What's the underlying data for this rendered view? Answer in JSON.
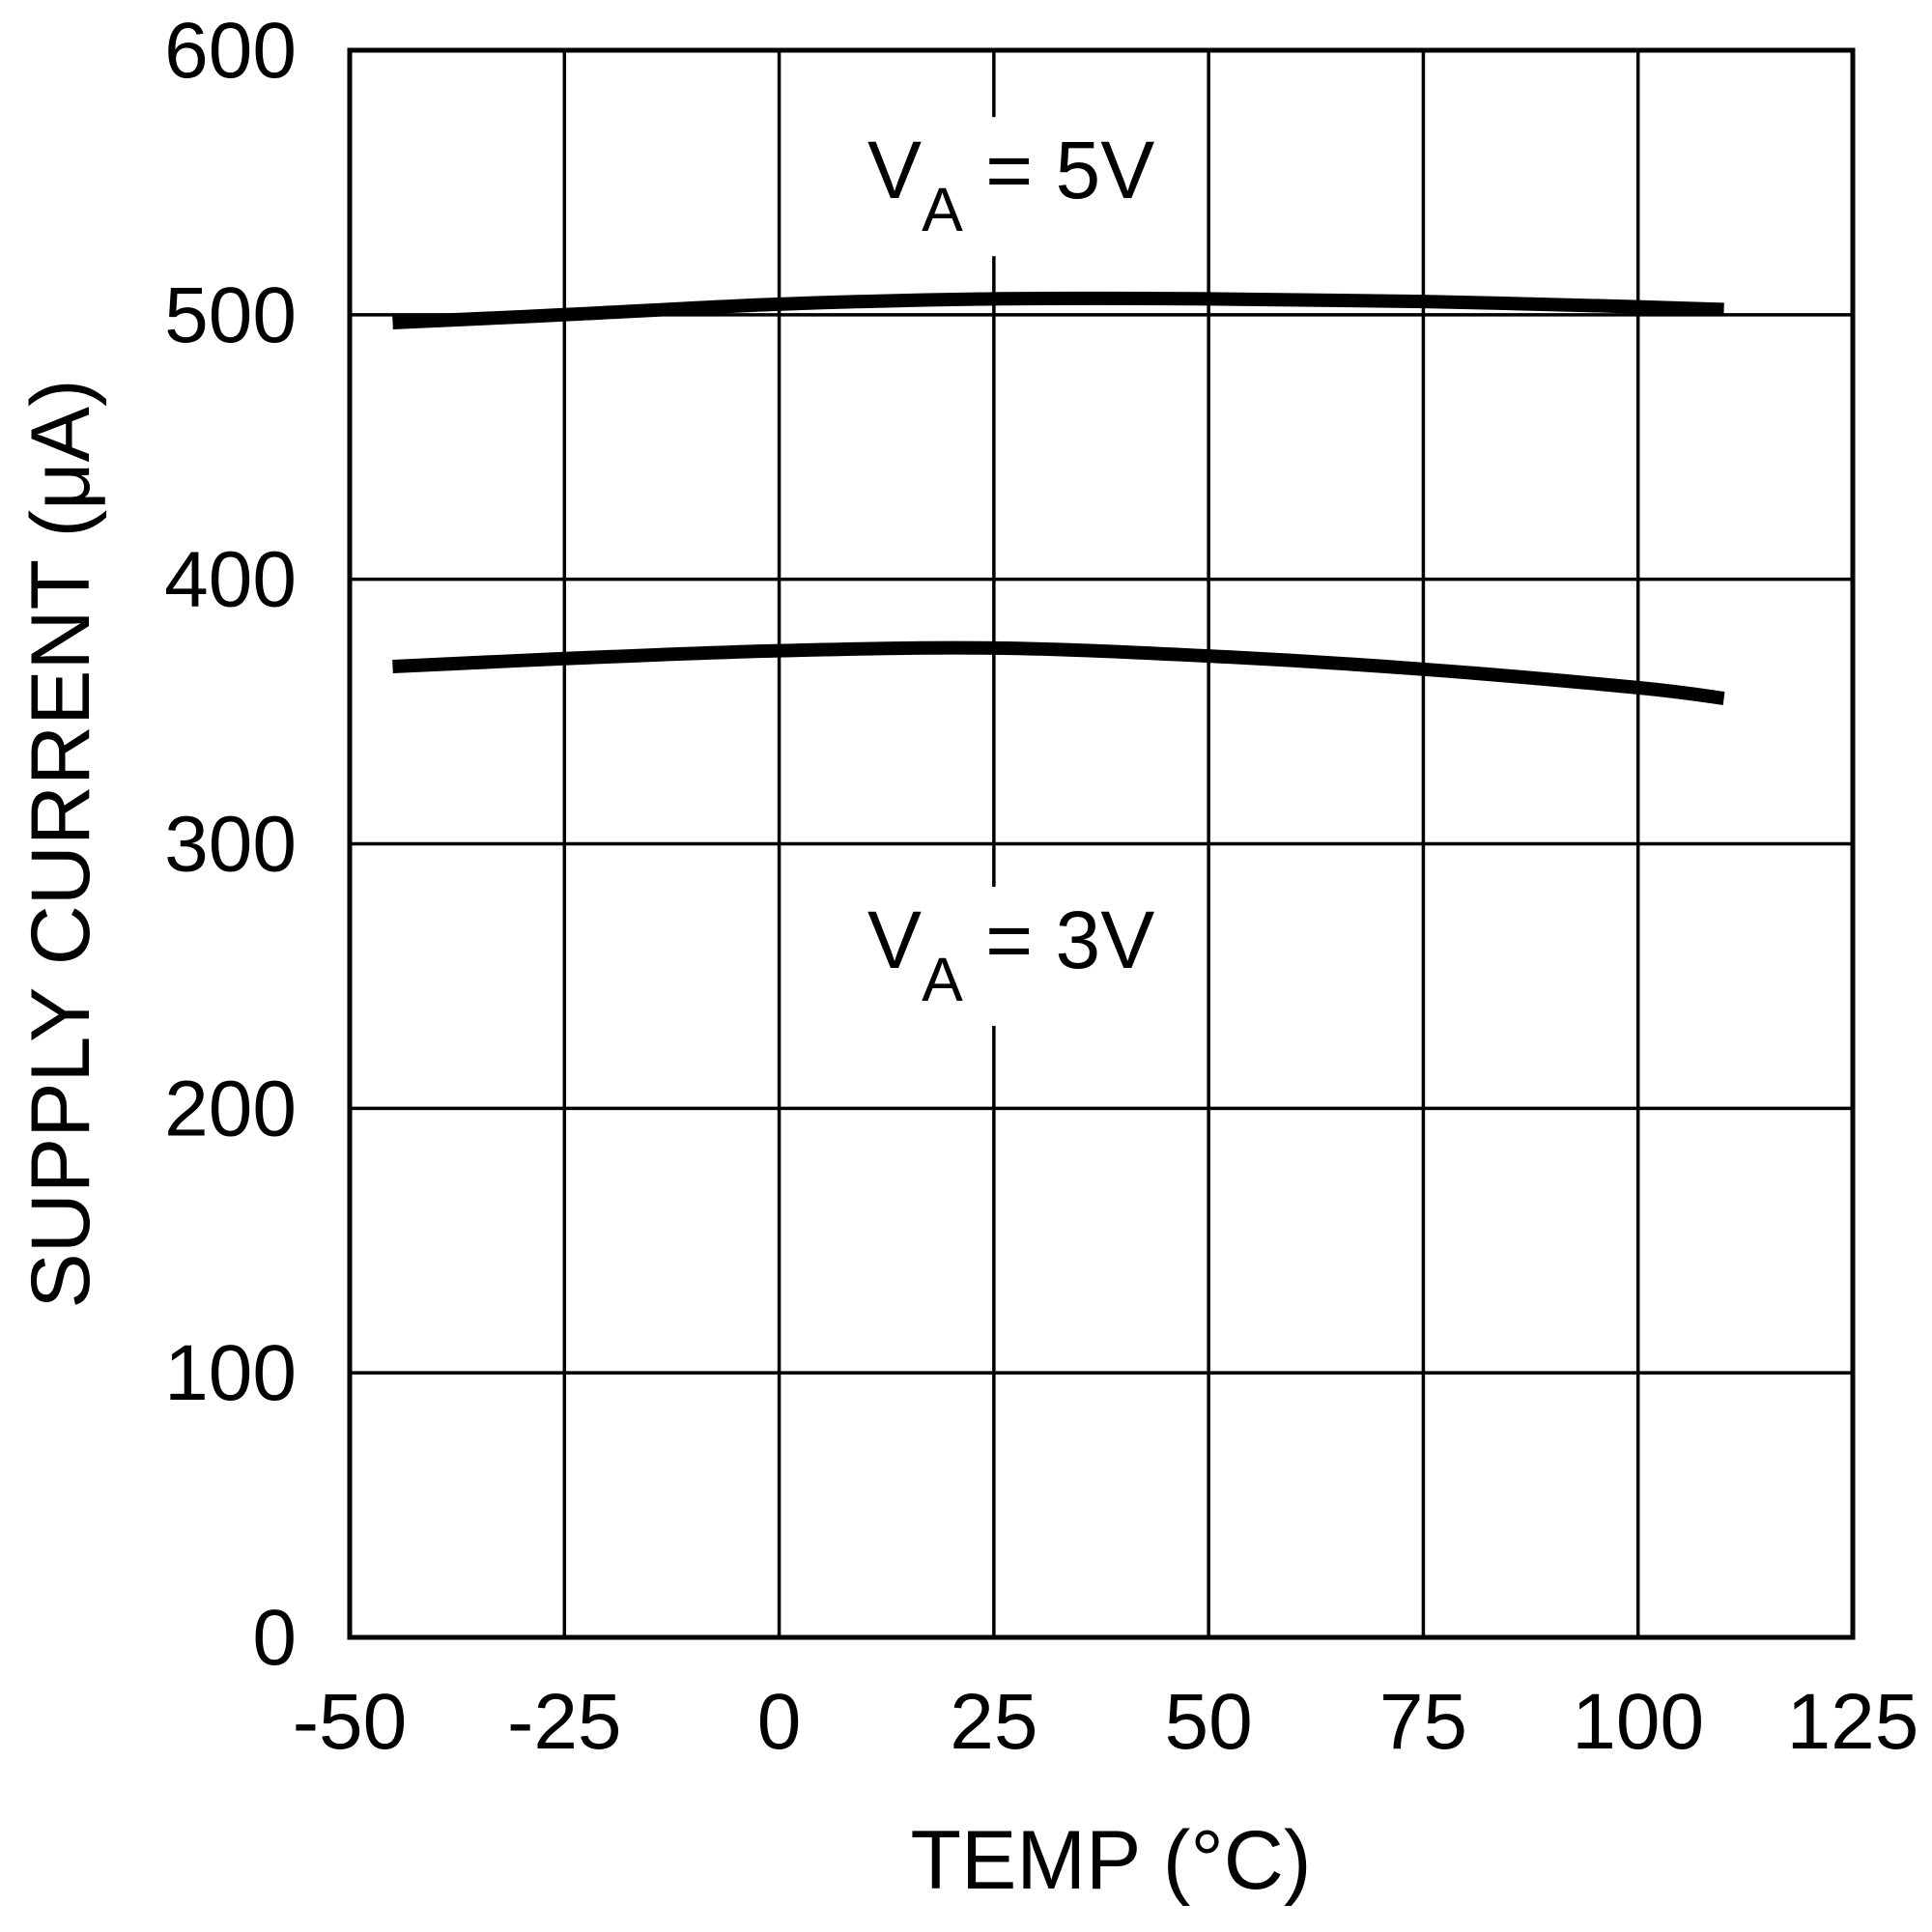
{
  "chart_data": {
    "type": "line",
    "title": "",
    "xlabel": "TEMP (°C)",
    "ylabel": "SUPPLY CURRENT (μA)",
    "xlim": [
      -50,
      125
    ],
    "ylim": [
      0,
      600
    ],
    "grid": true,
    "x_ticks": [
      -50,
      -25,
      0,
      25,
      50,
      75,
      100,
      125
    ],
    "y_ticks": [
      0,
      100,
      200,
      300,
      400,
      500,
      600
    ],
    "series": [
      {
        "name": "VA = 5V",
        "x": [
          -45,
          -25,
          0,
          25,
          50,
          75,
          100,
          110
        ],
        "values": [
          497,
          500,
          504,
          506,
          506,
          505,
          503,
          502
        ]
      },
      {
        "name": "VA = 3V",
        "x": [
          -45,
          -25,
          0,
          25,
          50,
          75,
          100,
          110
        ],
        "values": [
          367,
          370,
          373,
          374,
          371,
          366,
          359,
          355
        ]
      }
    ],
    "annotations": [
      {
        "main": "V",
        "sub": "A",
        "rest": " = 5V",
        "x": 27,
        "y": 555
      },
      {
        "main": "V",
        "sub": "A",
        "rest": " = 3V",
        "x": 27,
        "y": 264
      }
    ],
    "colors": {
      "line": "#000000",
      "grid": "#000000",
      "background": "#ffffff"
    }
  }
}
